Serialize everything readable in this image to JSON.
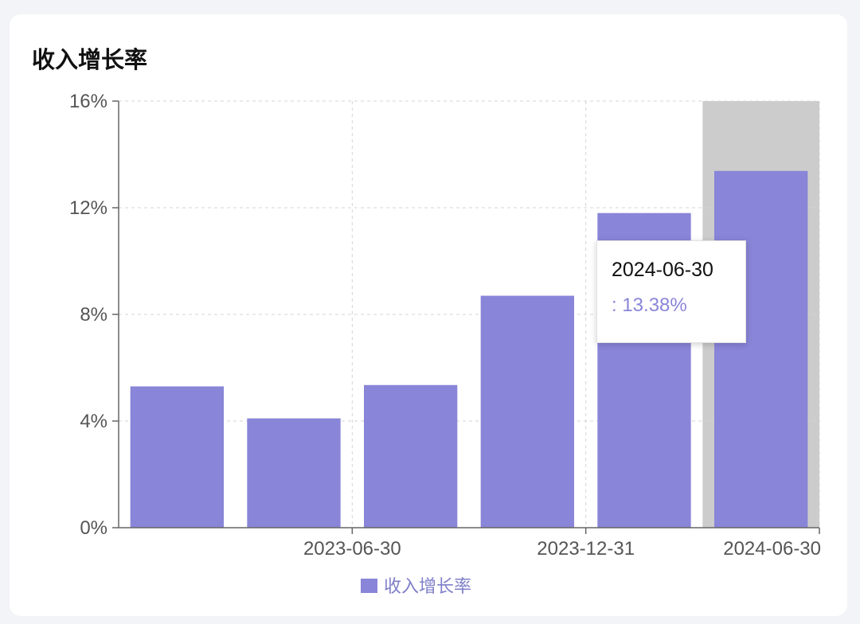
{
  "card": {
    "title": "收入增长率"
  },
  "chart_data": {
    "type": "bar",
    "title": "收入增长率",
    "categories": [
      "",
      "2023-06-30",
      "",
      "2023-12-31",
      "",
      "2024-06-30"
    ],
    "x_tick_labels": [
      "2023-06-30",
      "2023-12-31",
      "2024-06-30"
    ],
    "series": [
      {
        "name": "收入增长率",
        "values": [
          5.3,
          4.1,
          5.35,
          8.7,
          11.8,
          13.38
        ]
      }
    ],
    "ylim": [
      0,
      16
    ],
    "y_ticks": [
      "0%",
      "4%",
      "8%",
      "12%",
      "16%"
    ],
    "grid": true,
    "legend": "bottom",
    "highlighted_index": 5
  },
  "tooltip": {
    "title": "2024-06-30",
    "value": ": 13.38%"
  },
  "colors": {
    "bar": "#8985d8",
    "highlight_band": "#cccccc",
    "tooltip_value": "#8985d8",
    "grid": "#d4d4d4",
    "axis": "#666666"
  }
}
